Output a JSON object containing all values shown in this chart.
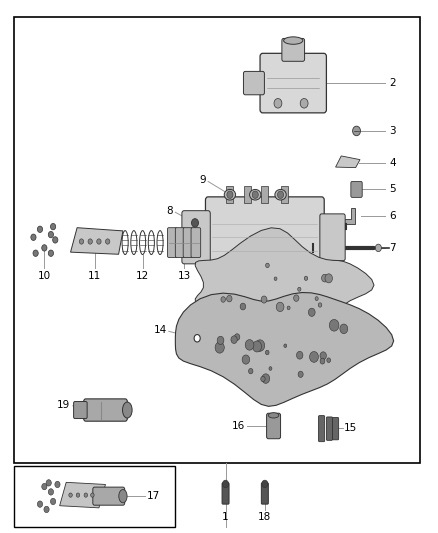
{
  "bg_color": "#ffffff",
  "border_color": "#000000",
  "line_color": "#999999",
  "part_color": "#333333",
  "label_fontsize": 7.5,
  "figsize": [
    4.38,
    5.33
  ],
  "dpi": 100
}
